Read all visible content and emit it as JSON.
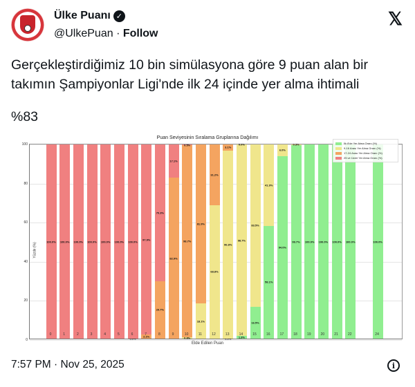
{
  "header": {
    "account_name": "Ülke Puanı",
    "handle": "@UlkePuan",
    "separator": " · ",
    "follow_label": "Follow",
    "verified_icon": "verified-badge-icon",
    "platform_logo": "𝕏"
  },
  "tweet": {
    "text": "Gerçekleştirdiğimiz 10 bin simülasyona göre 9 puan alan bir takımın Şampiyonlar Ligi'nde ilk 24 içinde yer alma ihtimali",
    "highlight": "%83"
  },
  "footer": {
    "timestamp": "7:57 PM · Nov 25, 2025",
    "info_icon": "ⓘ"
  },
  "colors": {
    "top8": "#90ee90",
    "r9_16": "#f0e68c",
    "r17_24": "#f4a460",
    "r25plus": "#f08080"
  },
  "chart_data": {
    "type": "bar",
    "stacked": true,
    "title": "Puan Seviyesinin Sıralama Gruplarına Dağılımı",
    "xlabel": "Elde Edilen Puan",
    "ylabel": "Yüzde (%)",
    "ylim": [
      0,
      100
    ],
    "yticks": [
      0,
      20,
      40,
      60,
      80,
      100
    ],
    "grid": true,
    "legend_position": "upper right",
    "categories": [
      "0",
      "1",
      "2",
      "3",
      "4",
      "5",
      "6",
      "7",
      "8",
      "9",
      "10",
      "11",
      "12",
      "13",
      "14",
      "15",
      "16",
      "17",
      "18",
      "19",
      "20",
      "21",
      "22",
      "24"
    ],
    "series": [
      {
        "name": "İlk 8'de Yer Alma Oranı (%)",
        "color": "#90ee90",
        "values": [
          0,
          0,
          0,
          0,
          0,
          0,
          0,
          0,
          0,
          0,
          0,
          0,
          0,
          0.0,
          1.3,
          16.5,
          58.1,
          94.0,
          99.7,
          100,
          100,
          100,
          100,
          100
        ]
      },
      {
        "name": "9-16 Arası Yer Alma Oranı (%)",
        "color": "#f0e68c",
        "values": [
          0,
          0,
          0,
          0,
          0,
          0,
          0,
          0,
          0,
          0,
          0.8,
          18.1,
          68.8,
          96.8,
          98.7,
          83.5,
          41.9,
          6.0,
          0.3,
          0,
          0,
          0,
          0,
          0
        ]
      },
      {
        "name": "17-24 Arası Yer Alma Oranı (%)",
        "color": "#f4a460",
        "values": [
          0,
          0,
          0,
          0,
          0,
          0,
          0.0,
          2.1,
          29.7,
          82.9,
          98.7,
          81.9,
          31.2,
          3.1,
          0.0,
          0,
          0,
          0,
          0,
          0,
          0,
          0,
          0,
          0
        ]
      },
      {
        "name": "25 ve Üzeri Yer Alma Oranı (%)",
        "color": "#f08080",
        "values": [
          100,
          100,
          100,
          100,
          100,
          100,
          100,
          97.9,
          70.3,
          17.1,
          0.5,
          0,
          0,
          0,
          0,
          0,
          0,
          0,
          0,
          0,
          0,
          0,
          0,
          0
        ]
      }
    ],
    "labels": [
      [
        "",
        "",
        "",
        "100.0%"
      ],
      [
        "",
        "",
        "",
        "100.0%"
      ],
      [
        "",
        "",
        "",
        "100.0%"
      ],
      [
        "",
        "",
        "",
        "100.0%"
      ],
      [
        "",
        "",
        "",
        "100.0%"
      ],
      [
        "",
        "",
        "",
        "100.0%"
      ],
      [
        "",
        "",
        "0.0%",
        "100.0%"
      ],
      [
        "",
        "",
        "2.1%",
        "97.9%"
      ],
      [
        "",
        "",
        "29.7%",
        "70.3%"
      ],
      [
        "",
        "",
        "82.9%",
        "17.1%"
      ],
      [
        "",
        "0.8%",
        "98.7%",
        "0.5%"
      ],
      [
        "",
        "18.1%",
        "81.9%",
        ""
      ],
      [
        "",
        "68.8%",
        "31.2%",
        ""
      ],
      [
        "0.0%",
        "96.8%",
        "3.1%",
        ""
      ],
      [
        "1.3%",
        "98.7%",
        "0.0%",
        ""
      ],
      [
        "16.5%",
        "83.5%",
        "",
        ""
      ],
      [
        "58.1%",
        "41.9%",
        "",
        ""
      ],
      [
        "94.0%",
        "6.0%",
        "",
        ""
      ],
      [
        "99.7%",
        "0.3%",
        "",
        ""
      ],
      [
        "100.0%",
        "",
        "",
        ""
      ],
      [
        "100.0%",
        "",
        "",
        ""
      ],
      [
        "100.0%",
        "",
        "",
        ""
      ],
      [
        "100.0%",
        "",
        "",
        ""
      ],
      [
        "100.0%",
        "",
        "",
        ""
      ]
    ]
  }
}
